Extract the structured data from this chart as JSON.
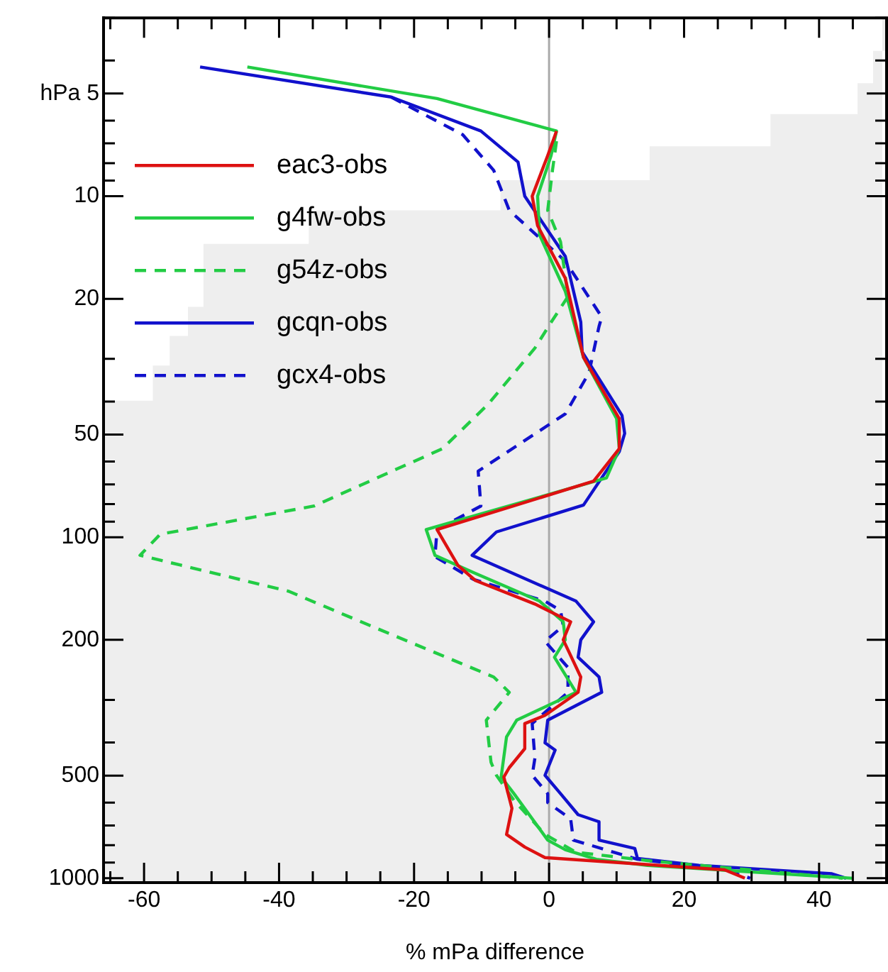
{
  "chart_data": {
    "type": "line",
    "orientation": "horizontal",
    "xlabel": "% mPa difference",
    "xlim": [
      -66,
      50
    ],
    "xticks": [
      {
        "value": -65,
        "label": null
      },
      -60,
      {
        "value": -55,
        "label": null
      },
      {
        "value": -50,
        "label": null
      },
      {
        "value": -45,
        "label": null
      },
      -40,
      {
        "value": -35,
        "label": null
      },
      {
        "value": -30,
        "label": null
      },
      {
        "value": -25,
        "label": null
      },
      -20,
      {
        "value": -15,
        "label": null
      },
      {
        "value": -10,
        "label": null
      },
      {
        "value": -5,
        "label": null
      },
      0,
      {
        "value": 5,
        "label": null
      },
      {
        "value": 10,
        "label": null
      },
      {
        "value": 15,
        "label": null
      },
      20,
      {
        "value": 25,
        "label": null
      },
      {
        "value": 30,
        "label": null
      },
      {
        "value": 35,
        "label": null
      },
      40,
      {
        "value": 45,
        "label": null
      }
    ],
    "ylim": [
      1030,
      3
    ],
    "yticks": [
      {
        "value": 3,
        "label": null
      },
      {
        "value": 4,
        "label": null
      },
      {
        "value": 5,
        "label": "hPa 5"
      },
      {
        "value": 6,
        "label": null
      },
      {
        "value": 7,
        "label": null
      },
      {
        "value": 8,
        "label": null
      },
      {
        "value": 9,
        "label": null
      },
      10,
      20,
      {
        "value": 30,
        "label": null
      },
      {
        "value": 40,
        "label": null
      },
      50,
      {
        "value": 60,
        "label": null
      },
      {
        "value": 70,
        "label": null
      },
      {
        "value": 80,
        "label": null
      },
      {
        "value": 90,
        "label": null
      },
      100,
      200,
      {
        "value": 300,
        "label": null
      },
      {
        "value": 400,
        "label": null
      },
      500,
      {
        "value": 600,
        "label": null
      },
      {
        "value": 700,
        "label": null
      },
      {
        "value": 800,
        "label": null
      },
      {
        "value": 900,
        "label": null
      },
      1000
    ],
    "log": "y",
    "legend": "top left",
    "ref_lines": [
      {
        "axis": "x",
        "value": 0,
        "color": "#aaaaaa"
      }
    ],
    "series": [
      {
        "type": "area",
        "color": "#eeeeee",
        "x": [
          3,
          3.75,
          3.75,
          4.66,
          4.66,
          5.74,
          5.74,
          7.14,
          7.14,
          8.98,
          8.98,
          11,
          11,
          13.8,
          13.8,
          21.1,
          21.1,
          25.7,
          25.7,
          31.4,
          31.4,
          39.8,
          39.8,
          1030,
          1030
        ],
        "values": [
          50,
          50,
          48,
          48,
          45.7,
          45.7,
          32.8,
          32.8,
          14.9,
          14.9,
          -7.2,
          -7.2,
          -35.6,
          -35.6,
          -51.2,
          -51.2,
          -53.5,
          -53.5,
          -56.2,
          -56.2,
          -58.7,
          -58.7,
          -66,
          -66,
          49.4
        ]
      },
      {
        "name": "eac3-obs",
        "color": "#dd1111",
        "line_style": "solid",
        "x": [
          6.44,
          7.6,
          10,
          12.2,
          17.4,
          29.7,
          44.9,
          55,
          68.5,
          95,
          121,
          134,
          157,
          177,
          200,
          257,
          285,
          333,
          352,
          417,
          474,
          505,
          624,
          744,
          810,
          870,
          945,
          1000
        ],
        "values": [
          1.1,
          -0.2,
          -2.5,
          -1.7,
          2.4,
          5.1,
          10.4,
          10.4,
          6.6,
          -16.6,
          -13.5,
          -10.9,
          -2.1,
          3.2,
          2.1,
          4.7,
          4.3,
          -0.6,
          -3.6,
          -3.6,
          -5.9,
          -6.7,
          -5.5,
          -6.3,
          -3.6,
          -0.6,
          26,
          29
        ]
      },
      {
        "name": "g4fw-obs",
        "color": "#22cc44",
        "line_style": "solid",
        "x": [
          4.18,
          5.17,
          6.44,
          7.6,
          10,
          13,
          19,
          29.7,
          44.9,
          55,
          67,
          95,
          113,
          127,
          154,
          177,
          200,
          225,
          285,
          344,
          385,
          505,
          565,
          773,
          825,
          880,
          917,
          1000
        ],
        "values": [
          -44.7,
          -16.6,
          1.1,
          0.3,
          -1.7,
          -1.4,
          2.4,
          5.1,
          10,
          10.4,
          8.5,
          -18.2,
          -16.9,
          -11.2,
          -1.4,
          2.1,
          2.4,
          0.8,
          4,
          -4.8,
          -6.3,
          -7.1,
          -5.2,
          -0.2,
          2.4,
          7,
          14.6,
          45
        ]
      },
      {
        "name": "g54z-obs",
        "color": "#22cc44",
        "line_style": "dashed",
        "x": [
          6.9,
          8.4,
          11,
          13.6,
          19.7,
          23.6,
          27.9,
          40.7,
          55,
          81,
          98,
          113,
          144,
          182,
          257,
          285,
          344,
          457,
          499,
          591,
          744,
          839,
          888,
          945,
          1000
        ],
        "values": [
          1.1,
          0.5,
          -0.2,
          1.7,
          2.8,
          0.2,
          -2.1,
          -9,
          -15.8,
          -34.8,
          -57.6,
          -60.6,
          -38.6,
          -26.4,
          -8.2,
          -5.9,
          -9.3,
          -8.6,
          -7.8,
          -5.2,
          -0.6,
          4,
          14.6,
          29.8,
          43.5
        ]
      },
      {
        "name": "gcqn-obs",
        "color": "#1111cc",
        "line_style": "solid",
        "x": [
          4.18,
          5.12,
          6.44,
          7.94,
          10,
          15,
          23.4,
          28.6,
          43.9,
          49.6,
          56.1,
          80.5,
          96.5,
          113,
          154,
          177,
          200,
          225,
          257,
          285,
          344,
          401,
          421,
          499,
          565,
          651,
          683,
          773,
          818,
          875,
          917,
          970,
          1000
        ],
        "values": [
          -51.7,
          -23.4,
          -10.1,
          -4.6,
          -3.6,
          2.4,
          4.7,
          4.9,
          10.8,
          11.2,
          10.4,
          5.1,
          -7.8,
          -11.4,
          4,
          6.6,
          4.7,
          4.3,
          7.4,
          7.8,
          -0.2,
          -0.6,
          0.9,
          -0.6,
          1.7,
          4.3,
          7.4,
          7.4,
          12.7,
          13.1,
          22.2,
          41.9,
          44
        ]
      },
      {
        "name": "gcx4-obs",
        "color": "#1111cc",
        "line_style": "dashed",
        "x": [
          5.12,
          6.6,
          8.4,
          11,
          15.5,
          22.6,
          24.1,
          33,
          43.5,
          64,
          81,
          95,
          114,
          133,
          154,
          164,
          182,
          202,
          241,
          285,
          352,
          445,
          499,
          565,
          600,
          670,
          773,
          880,
          945,
          1000
        ],
        "values": [
          -23.4,
          -12.8,
          -8.2,
          -5.9,
          2.4,
          7.8,
          7.4,
          5.9,
          2.4,
          -10.5,
          -10.1,
          -16.6,
          -16.9,
          -11.2,
          -0.6,
          1.7,
          2.1,
          -0.6,
          2.8,
          2.8,
          -2.5,
          -2.1,
          -2.5,
          -0.2,
          -0.2,
          3.2,
          3.6,
          13.1,
          26,
          29.8
        ]
      }
    ]
  }
}
